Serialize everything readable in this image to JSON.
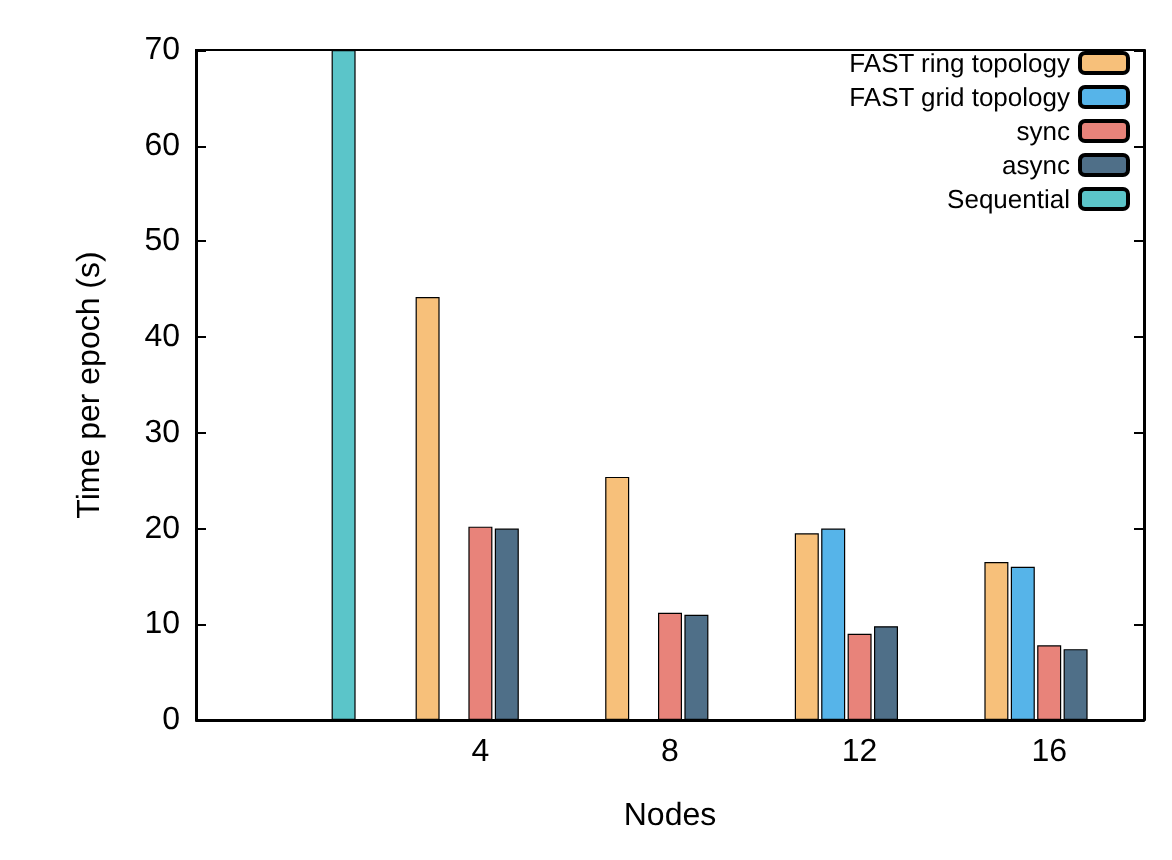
{
  "chart_data": {
    "type": "bar",
    "xlabel": "Nodes",
    "ylabel": "Time per epoch (s)",
    "categories": [
      null,
      "4",
      "8",
      "12",
      "16"
    ],
    "series": [
      {
        "name": "FAST ring topology",
        "color": "#f7c07a",
        "values": [
          null,
          44.2,
          25.4,
          19.5,
          16.5
        ]
      },
      {
        "name": "FAST grid topology",
        "color": "#56b4e9",
        "values": [
          null,
          null,
          null,
          20.0,
          16.0
        ]
      },
      {
        "name": "sync",
        "color": "#e8837a",
        "values": [
          null,
          20.2,
          11.2,
          9.0,
          7.8
        ]
      },
      {
        "name": "async",
        "color": "#4f6f88",
        "values": [
          null,
          20.0,
          11.0,
          9.8,
          7.4
        ]
      },
      {
        "name": "Sequential",
        "color": "#5bc5c9",
        "values": [
          70,
          null,
          null,
          null,
          null
        ]
      }
    ],
    "ylim": [
      0,
      70
    ],
    "yticks": [
      0,
      10,
      20,
      30,
      40,
      50,
      60,
      70
    ],
    "grid": false,
    "legend": "top right"
  }
}
